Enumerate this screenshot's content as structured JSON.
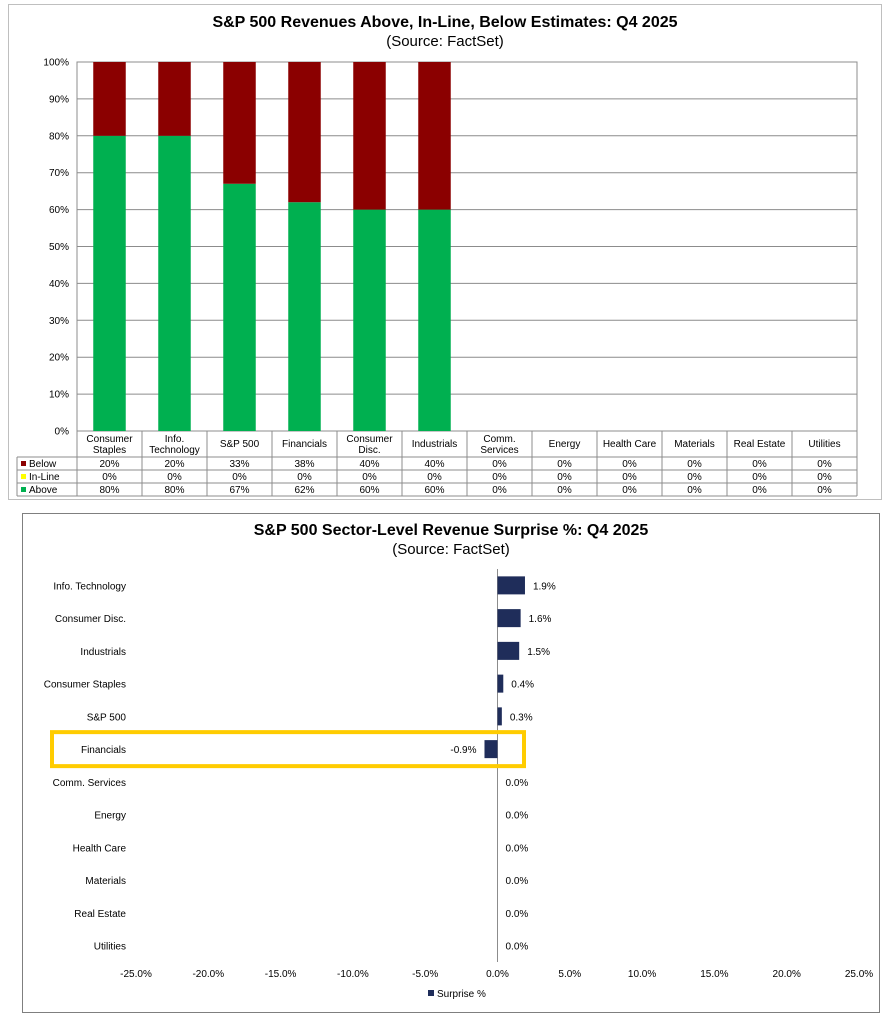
{
  "chart_data": [
    {
      "type": "bar",
      "stacked": true,
      "title": "S&P 500 Revenues Above, In-Line, Below Estimates: Q4 2025",
      "subtitle": "(Source: FactSet)",
      "categories": [
        [
          "Consumer",
          "Staples"
        ],
        [
          "Info.",
          "Technology"
        ],
        [
          "S&P 500"
        ],
        [
          "Financials"
        ],
        [
          "Consumer",
          "Disc."
        ],
        [
          "Industrials"
        ],
        [
          "Comm.",
          "Services"
        ],
        [
          "Energy"
        ],
        [
          "Health Care"
        ],
        [
          "Materials"
        ],
        [
          "Real Estate"
        ],
        [
          "Utilities"
        ]
      ],
      "series": [
        {
          "name": "Below",
          "color": "#8b0000",
          "values": [
            20,
            20,
            33,
            38,
            40,
            40,
            0,
            0,
            0,
            0,
            0,
            0
          ],
          "labels": [
            "20%",
            "20%",
            "33%",
            "38%",
            "40%",
            "40%",
            "0%",
            "0%",
            "0%",
            "0%",
            "0%",
            "0%"
          ]
        },
        {
          "name": "In-Line",
          "color": "#ffff00",
          "values": [
            0,
            0,
            0,
            0,
            0,
            0,
            0,
            0,
            0,
            0,
            0,
            0
          ],
          "labels": [
            "0%",
            "0%",
            "0%",
            "0%",
            "0%",
            "0%",
            "0%",
            "0%",
            "0%",
            "0%",
            "0%",
            "0%"
          ]
        },
        {
          "name": "Above",
          "color": "#00b050",
          "values": [
            80,
            80,
            67,
            62,
            60,
            60,
            0,
            0,
            0,
            0,
            0,
            0
          ],
          "labels": [
            "80%",
            "80%",
            "67%",
            "62%",
            "60%",
            "60%",
            "0%",
            "0%",
            "0%",
            "0%",
            "0%",
            "0%"
          ]
        }
      ],
      "ylim": [
        0,
        100
      ],
      "yticks": [
        0,
        10,
        20,
        30,
        40,
        50,
        60,
        70,
        80,
        90,
        100
      ],
      "ytick_labels": [
        "0%",
        "10%",
        "20%",
        "30%",
        "40%",
        "50%",
        "60%",
        "70%",
        "80%",
        "90%",
        "100%"
      ],
      "grid": true,
      "legend": "data-table"
    },
    {
      "type": "bar",
      "orientation": "horizontal",
      "title": "S&P 500 Sector-Level Revenue Surprise %: Q4 2025",
      "subtitle": "(Source: FactSet)",
      "categories": [
        "Info. Technology",
        "Consumer Disc.",
        "Industrials",
        "Consumer Staples",
        "S&P 500",
        "Financials",
        "Comm. Services",
        "Energy",
        "Health Care",
        "Materials",
        "Real Estate",
        "Utilities"
      ],
      "series": [
        {
          "name": "Surprise %",
          "color": "#1f2d5a",
          "values": [
            1.9,
            1.6,
            1.5,
            0.4,
            0.3,
            -0.9,
            0.0,
            0.0,
            0.0,
            0.0,
            0.0,
            0.0
          ],
          "labels": [
            "1.9%",
            "1.6%",
            "1.5%",
            "0.4%",
            "0.3%",
            "-0.9%",
            "0.0%",
            "0.0%",
            "0.0%",
            "0.0%",
            "0.0%",
            "0.0%"
          ]
        }
      ],
      "xlim": [
        -25,
        25
      ],
      "xticks": [
        -25,
        -20,
        -15,
        -10,
        -5,
        0,
        5,
        10,
        15,
        20,
        25
      ],
      "xtick_labels": [
        "-25.0%",
        "-20.0%",
        "-15.0%",
        "-10.0%",
        "-5.0%",
        "0.0%",
        "5.0%",
        "10.0%",
        "15.0%",
        "20.0%",
        "25.0%"
      ],
      "highlight": "Financials",
      "highlight_color": "#ffcc00",
      "legend": "bottom"
    }
  ]
}
